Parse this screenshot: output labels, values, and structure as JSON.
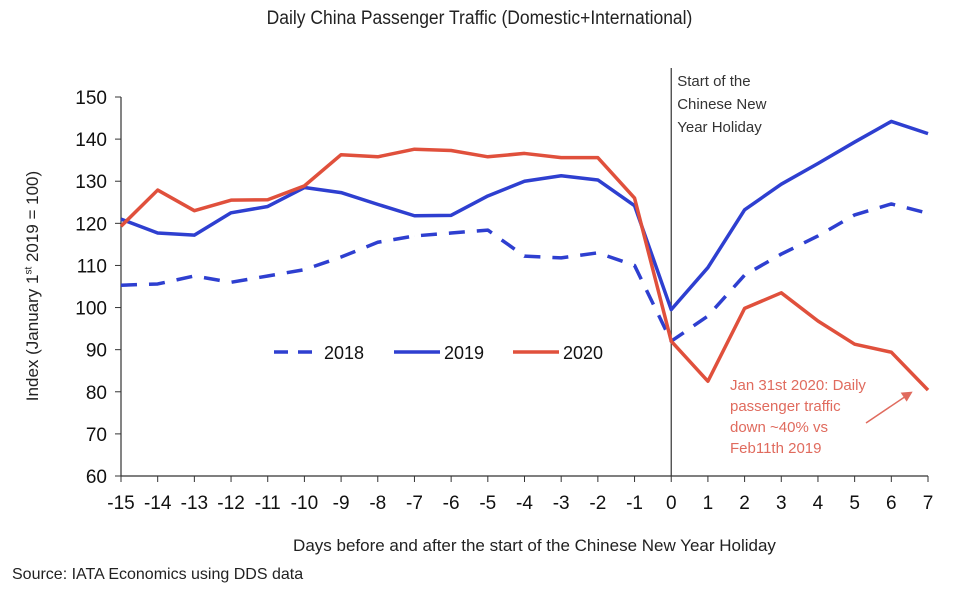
{
  "chart_data": {
    "type": "line",
    "title": "Daily China Passenger Traffic (Domestic+International)",
    "xlabel": "Days before and after the start of the Chinese New Year Holiday",
    "ylabel_parts": [
      "Index (January 1",
      "st",
      " 2019 = 100)"
    ],
    "source": "Source: IATA Economics using DDS data",
    "x": [
      -15,
      -14,
      -13,
      -12,
      -11,
      -10,
      -9,
      -8,
      -7,
      -6,
      -5,
      -4,
      -3,
      -2,
      -1,
      0,
      1,
      2,
      3,
      4,
      5,
      6,
      7
    ],
    "xlim": [
      -15,
      7
    ],
    "ylim": [
      60,
      150
    ],
    "yticks": [
      60,
      70,
      80,
      90,
      100,
      110,
      120,
      130,
      140,
      150
    ],
    "grid": false,
    "legend_position": "center",
    "series": [
      {
        "name": "2018",
        "color": "#2e3fd0",
        "style": "dashed",
        "values": [
          105.3,
          105.6,
          107.5,
          106,
          107.5,
          109,
          112,
          115.5,
          117,
          117.7,
          118.4,
          112.2,
          111.8,
          113,
          110,
          92,
          98,
          107.7,
          112.7,
          117,
          122,
          124.6,
          122.4
        ]
      },
      {
        "name": "2019",
        "color": "#2e3fd0",
        "style": "solid",
        "values": [
          121,
          117.7,
          117.2,
          122.5,
          124,
          128.5,
          127.3,
          124.5,
          121.8,
          121.9,
          126.5,
          130,
          131.3,
          130.3,
          124.2,
          99.5,
          109.5,
          123.2,
          129.3,
          134.2,
          139.3,
          144.2,
          141.3
        ]
      },
      {
        "name": "2020",
        "color": "#e0503c",
        "style": "solid",
        "values": [
          119.3,
          127.9,
          123,
          125.5,
          125.6,
          128.9,
          136.3,
          135.8,
          137.6,
          137.3,
          135.8,
          136.6,
          135.6,
          135.6,
          126,
          92,
          82.5,
          99.8,
          103.5,
          96.8,
          91.3,
          89.4,
          80.4
        ]
      }
    ],
    "annotations": [
      {
        "text_lines": [
          "Start of the",
          "Chinese New",
          "Year Holiday"
        ],
        "at_x": 0,
        "kind": "vertical-line"
      },
      {
        "text_lines": [
          "Jan 31st 2020: Daily",
          "passenger traffic",
          "down ~40% vs",
          "Feb11th 2019"
        ],
        "color": "#e06b5e",
        "arrow_to": {
          "x": 6.8,
          "y": 81
        }
      }
    ]
  }
}
